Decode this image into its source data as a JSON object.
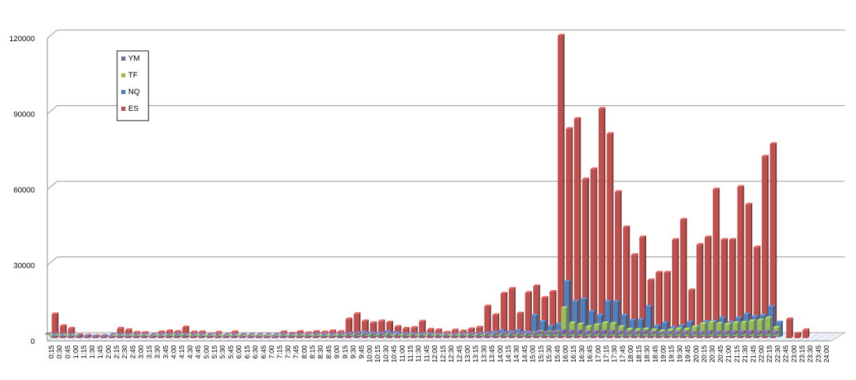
{
  "chart_data": {
    "type": "bar",
    "title": "",
    "xlabel": "",
    "ylabel": "",
    "ylim": [
      0,
      120000
    ],
    "yticks": [
      "0",
      "30000",
      "60000",
      "90000",
      "120000"
    ],
    "grid": true,
    "legend_position": "top-left",
    "categories": [
      "0:15",
      "0:30",
      "0:45",
      "1:00",
      "1:15",
      "1:30",
      "1:45",
      "2:00",
      "2:15",
      "2:30",
      "2:45",
      "3:00",
      "3:15",
      "3:30",
      "3:45",
      "4:00",
      "4:15",
      "4:30",
      "4:45",
      "5:00",
      "5:15",
      "5:30",
      "5:45",
      "6:00",
      "6:15",
      "6:30",
      "6:45",
      "7:00",
      "7:15",
      "7:30",
      "7:45",
      "8:00",
      "8:15",
      "8:30",
      "8:45",
      "9:00",
      "9:15",
      "9:30",
      "9:45",
      "10:00",
      "10:15",
      "10:30",
      "10:45",
      "11:00",
      "11:15",
      "11:30",
      "11:45",
      "12:00",
      "12:15",
      "12:30",
      "12:45",
      "13:00",
      "13:15",
      "13:30",
      "13:45",
      "14:00",
      "14:15",
      "14:30",
      "14:45",
      "15:00",
      "15:15",
      "15:30",
      "15:45",
      "16:00",
      "16:15",
      "16:30",
      "16:45",
      "17:00",
      "17:15",
      "17:30",
      "17:45",
      "18:00",
      "18:15",
      "18:30",
      "18:45",
      "19:00",
      "19:15",
      "19:30",
      "19:45",
      "20:00",
      "20:15",
      "20:30",
      "20:45",
      "21:00",
      "21:15",
      "21:30",
      "21:45",
      "22:00",
      "22:15",
      "22:30",
      "22:45",
      "23:00",
      "23:15",
      "23:30",
      "23:45",
      "24:00"
    ],
    "series": [
      {
        "name": "YM",
        "color": "#7F6AA8",
        "values": [
          200,
          200,
          100,
          100,
          0,
          0,
          0,
          0,
          100,
          100,
          100,
          100,
          50,
          100,
          100,
          200,
          300,
          100,
          100,
          100,
          50,
          50,
          100,
          50,
          50,
          50,
          50,
          50,
          100,
          100,
          100,
          100,
          100,
          200,
          200,
          200,
          300,
          500,
          600,
          500,
          400,
          600,
          400,
          300,
          300,
          200,
          300,
          200,
          200,
          100,
          200,
          200,
          300,
          400,
          500,
          700,
          600,
          800,
          600,
          700,
          900,
          700,
          900,
          1500,
          1200,
          1400,
          1000,
          1100,
          1300,
          1200,
          1000,
          900,
          800,
          1200,
          700,
          600,
          700,
          800,
          900,
          700,
          800,
          1200,
          900,
          1000,
          1000,
          1100,
          1200,
          1000,
          1300,
          900,
          0,
          0,
          0,
          0,
          0,
          0
        ]
      },
      {
        "name": "TF",
        "color": "#9BBB59",
        "values": [
          200,
          200,
          100,
          100,
          0,
          0,
          0,
          0,
          100,
          100,
          100,
          100,
          50,
          100,
          100,
          200,
          300,
          100,
          100,
          100,
          50,
          50,
          100,
          50,
          50,
          50,
          50,
          50,
          100,
          100,
          100,
          100,
          100,
          100,
          100,
          200,
          200,
          400,
          500,
          500,
          400,
          500,
          300,
          300,
          300,
          200,
          300,
          200,
          200,
          100,
          200,
          200,
          200,
          300,
          400,
          500,
          500,
          700,
          500,
          1000,
          1600,
          1300,
          1500,
          11000,
          5000,
          4500,
          3500,
          4200,
          5000,
          4800,
          3500,
          2500,
          2300,
          2600,
          2200,
          1800,
          2200,
          2700,
          2500,
          3500,
          4700,
          5200,
          4800,
          4500,
          5000,
          5200,
          5800,
          6100,
          7000,
          3200,
          0,
          0,
          0,
          0,
          0,
          0
        ]
      },
      {
        "name": "NQ",
        "color": "#4F81BD",
        "values": [
          300,
          300,
          200,
          200,
          100,
          100,
          100,
          100,
          200,
          200,
          200,
          200,
          100,
          200,
          200,
          400,
          600,
          200,
          200,
          200,
          100,
          100,
          200,
          100,
          100,
          100,
          100,
          100,
          200,
          200,
          200,
          200,
          200,
          300,
          300,
          500,
          700,
          1200,
          1800,
          1500,
          1300,
          2000,
          1600,
          1000,
          1200,
          900,
          1100,
          700,
          700,
          500,
          700,
          700,
          900,
          1200,
          1800,
          2400,
          2000,
          2500,
          1800,
          8500,
          6000,
          4200,
          5000,
          22000,
          14000,
          15000,
          10000,
          8500,
          14000,
          14000,
          8500,
          6500,
          6800,
          12000,
          4200,
          5500,
          3600,
          4400,
          5800,
          4000,
          6000,
          6000,
          7500,
          5800,
          7500,
          9000,
          8000,
          8500,
          12000,
          5800,
          0,
          0,
          0,
          0,
          0,
          0
        ]
      },
      {
        "name": "ES",
        "color": "#C0504D",
        "values": [
          9500,
          4800,
          3800,
          1200,
          1000,
          800,
          900,
          800,
          3800,
          3200,
          2200,
          2100,
          1000,
          2400,
          2800,
          2500,
          4300,
          2300,
          2400,
          1500,
          2200,
          1000,
          2400,
          1200,
          1000,
          700,
          600,
          700,
          2400,
          1800,
          2500,
          2000,
          2500,
          2300,
          2800,
          2500,
          7500,
          9600,
          6700,
          6000,
          6700,
          6200,
          4500,
          3800,
          4100,
          6600,
          3400,
          3200,
          2200,
          3100,
          2700,
          3600,
          4200,
          12600,
          9200,
          17700,
          19600,
          9800,
          18000,
          20600,
          16000,
          18400,
          120000,
          83000,
          87000,
          63000,
          67000,
          91000,
          81000,
          58000,
          44000,
          33000,
          40000,
          23000,
          26000,
          26000,
          39000,
          47000,
          19000,
          37000,
          40000,
          59000,
          39000,
          39000,
          60000,
          53000,
          36000,
          72000,
          77000,
          0,
          7500,
          1800,
          3200,
          0,
          0,
          0
        ]
      }
    ]
  }
}
